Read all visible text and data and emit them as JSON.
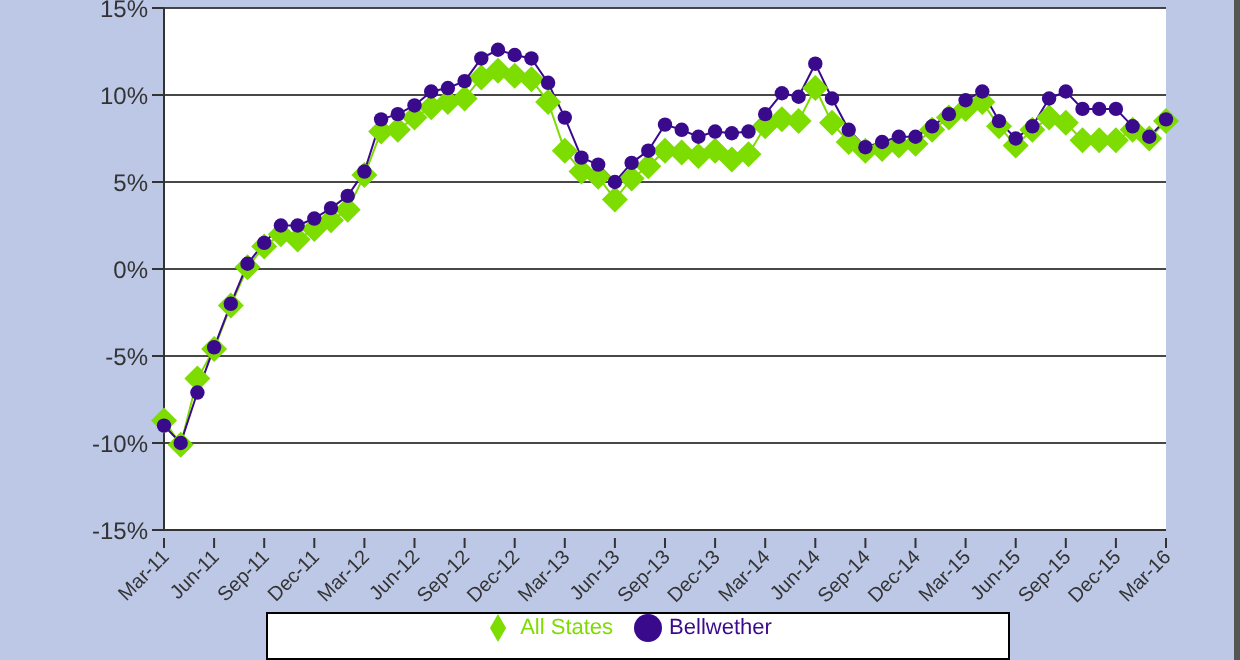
{
  "chart_data": {
    "type": "line",
    "categories": [
      "Mar-11",
      null,
      null,
      "Jun-11",
      null,
      null,
      "Sep-11",
      null,
      null,
      "Dec-11",
      null,
      null,
      "Mar-12",
      null,
      null,
      "Jun-12",
      null,
      null,
      "Sep-12",
      null,
      null,
      "Dec-12",
      null,
      null,
      "Mar-13",
      null,
      null,
      "Jun-13",
      null,
      null,
      "Sep-13",
      null,
      null,
      "Dec-13",
      null,
      null,
      "Mar-14",
      null,
      null,
      "Jun-14",
      null,
      null,
      "Sep-14",
      null,
      null,
      "Dec-14",
      null,
      null,
      "Mar-15",
      null,
      null,
      "Jun-15",
      null,
      null,
      "Sep-15",
      null,
      null,
      "Dec-15",
      null,
      null,
      "Mar-16"
    ],
    "series": [
      {
        "name": "All States",
        "color": "#7ddc00",
        "marker": "diamond",
        "values": [
          -8.7,
          -10.1,
          -6.3,
          -4.6,
          -2.1,
          0.1,
          1.3,
          2.0,
          1.7,
          2.3,
          2.8,
          3.4,
          5.4,
          7.9,
          8.0,
          8.7,
          9.3,
          9.6,
          9.8,
          11.0,
          11.4,
          11.1,
          10.9,
          9.6,
          6.8,
          5.6,
          5.3,
          4.0,
          5.2,
          5.9,
          6.8,
          6.7,
          6.5,
          6.8,
          6.3,
          6.6,
          8.2,
          8.6,
          8.5,
          10.4,
          8.4,
          7.3,
          6.8,
          6.9,
          7.1,
          7.2,
          8.0,
          8.7,
          9.2,
          9.6,
          8.2,
          7.1,
          8.0,
          8.7,
          8.4,
          7.4,
          7.4,
          7.4,
          8.0,
          7.5,
          8.5
        ]
      },
      {
        "name": "Bellwether",
        "color": "#3a0a8c",
        "marker": "circle",
        "values": [
          -9.0,
          -10.0,
          -7.1,
          -4.5,
          -2.0,
          0.3,
          1.5,
          2.5,
          2.5,
          2.9,
          3.5,
          4.2,
          5.6,
          8.6,
          8.9,
          9.4,
          10.2,
          10.4,
          10.8,
          12.1,
          12.6,
          12.3,
          12.1,
          10.7,
          8.7,
          6.4,
          6.0,
          5.0,
          6.1,
          6.8,
          8.3,
          8.0,
          7.6,
          7.9,
          7.8,
          7.9,
          8.9,
          10.1,
          9.9,
          11.8,
          9.8,
          8.0,
          7.0,
          7.3,
          7.6,
          7.6,
          8.2,
          8.9,
          9.7,
          10.2,
          8.5,
          7.5,
          8.2,
          9.8,
          10.2,
          9.2,
          9.2,
          9.2,
          8.2,
          7.6,
          8.6
        ]
      }
    ],
    "ylim": [
      -15,
      15
    ],
    "yticks": [
      {
        "value": -15,
        "label": "-15%"
      },
      {
        "value": -10,
        "label": "-10%"
      },
      {
        "value": -5,
        "label": "-5%"
      },
      {
        "value": 0,
        "label": "0%"
      },
      {
        "value": 5,
        "label": "5%"
      },
      {
        "value": 10,
        "label": "10%"
      },
      {
        "value": 15,
        "label": "15%"
      }
    ],
    "grid": "y",
    "legend": "bottom"
  }
}
